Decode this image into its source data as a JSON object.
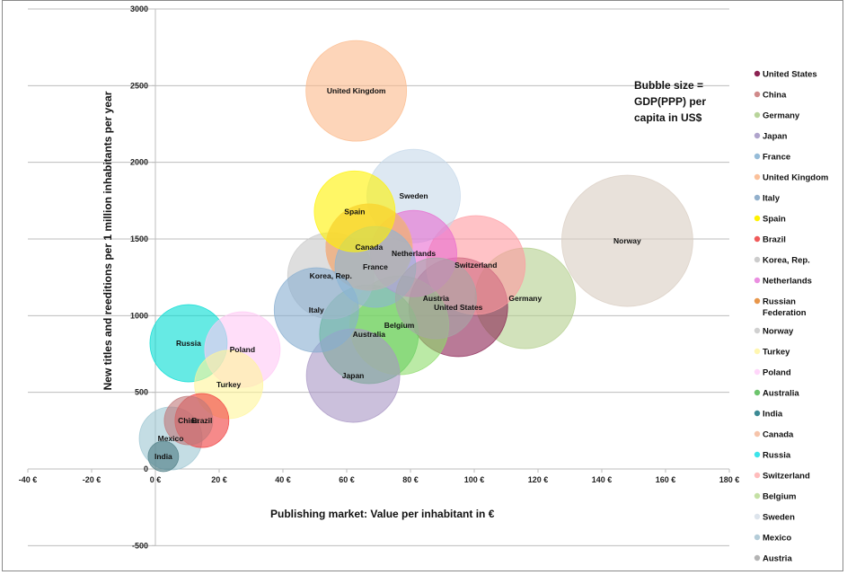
{
  "chart_data": {
    "type": "scatter",
    "subtype": "bubble",
    "title": "",
    "xlabel": "Publishing market: Value  per inhabitant in €",
    "ylabel": "New titles and reeditions per 1 million inhabitants per year",
    "annotation": [
      "Bubble size =",
      "GDP(PPP)  per",
      "capita in US$"
    ],
    "xlim": [
      -40,
      180
    ],
    "ylim": [
      -500,
      3000
    ],
    "x_ticks": [
      "-40 €",
      "-20 €",
      "0 €",
      "20 €",
      "40 €",
      "60 €",
      "80 €",
      "100 €",
      "120 €",
      "140 €",
      "160 €",
      "180 €"
    ],
    "x_tick_values": [
      -40,
      -20,
      0,
      20,
      40,
      60,
      80,
      100,
      120,
      140,
      160,
      180
    ],
    "y_ticks": [
      "-500",
      "0",
      "500",
      "1000",
      "1500",
      "2000",
      "2500",
      "3000"
    ],
    "y_tick_values": [
      -500,
      0,
      500,
      1000,
      1500,
      2000,
      2500,
      3000
    ],
    "grid": "horizontal",
    "legend_position": "right",
    "series": [
      {
        "name": "United States",
        "x": 95,
        "y": 1055,
        "size": 55,
        "color": "#8b2252",
        "label": "United States"
      },
      {
        "name": "China",
        "x": 10.4,
        "y": 316,
        "size": 27,
        "color": "#c0787a",
        "label": "China"
      },
      {
        "name": "Germany",
        "x": 116,
        "y": 1113,
        "size": 56,
        "color": "#b4cf8e",
        "label": "Germany"
      },
      {
        "name": "Japan",
        "x": 62,
        "y": 609,
        "size": 52,
        "color": "#a996c4",
        "label": "Japan"
      },
      {
        "name": "France",
        "x": 69,
        "y": 1318,
        "size": 45,
        "color": "#8bb5d6",
        "label": "France"
      },
      {
        "name": "United Kingdom",
        "x": 63,
        "y": 2466,
        "size": 56,
        "color": "#fbb98a",
        "label": "United Kingdom"
      },
      {
        "name": "Italy",
        "x": 50.5,
        "y": 1037,
        "size": 47,
        "color": "#87aed0",
        "label": "Italy"
      },
      {
        "name": "Spain",
        "x": 62.5,
        "y": 1680,
        "size": 45,
        "color": "#fff200",
        "label": "Spain"
      },
      {
        "name": "Brazil",
        "x": 14.6,
        "y": 316,
        "size": 30,
        "color": "#f03c3c",
        "label": "Brazil"
      },
      {
        "name": "Korea, Rep.",
        "x": 55,
        "y": 1260,
        "size": 48,
        "color": "#c8c8c8",
        "label": "Korea, Rep."
      },
      {
        "name": "Netherlands",
        "x": 81,
        "y": 1405,
        "size": 48,
        "color": "#e86ad0",
        "label": "Netherlands"
      },
      {
        "name": "Russian Federation",
        "x": 67,
        "y": 1447,
        "size": 48,
        "color": "#e8963c",
        "label": ""
      },
      {
        "name": "Norway",
        "x": 148,
        "y": 1488,
        "size": 73,
        "color": "#d9cdc2",
        "label": "Norway"
      },
      {
        "name": "Turkey",
        "x": 23,
        "y": 551,
        "size": 38,
        "color": "#fff59a",
        "label": "Turkey"
      },
      {
        "name": "Poland",
        "x": 27.3,
        "y": 779,
        "size": 42,
        "color": "#ffc8f5",
        "label": "Poland"
      },
      {
        "name": "Australia",
        "x": 67,
        "y": 879,
        "size": 55,
        "color": "#3cbe5a",
        "label": "Australia"
      },
      {
        "name": "India",
        "x": 2.5,
        "y": 82,
        "size": 17,
        "color": "#4a7a82",
        "label": "India"
      },
      {
        "name": "Canada",
        "x": 67,
        "y": 1447,
        "size": 48,
        "color": "#f2b89a",
        "label": "Canada"
      },
      {
        "name": "Russia",
        "x": 10.4,
        "y": 820,
        "size": 43,
        "color": "#00dcd2",
        "label": "Russia"
      },
      {
        "name": "Switzerland",
        "x": 100.5,
        "y": 1330,
        "size": 55,
        "color": "#ff9aa0",
        "label": "Switzerland"
      },
      {
        "name": "Belgium",
        "x": 76.5,
        "y": 937,
        "size": 55,
        "color": "#8edc6a",
        "label": "Belgium"
      },
      {
        "name": "Sweden",
        "x": 81,
        "y": 1780,
        "size": 52,
        "color": "#c6d8ea",
        "label": "Sweden"
      },
      {
        "name": "Mexico",
        "x": 4.8,
        "y": 199,
        "size": 35,
        "color": "#9cc6d2",
        "label": "Mexico"
      },
      {
        "name": "Austria",
        "x": 88,
        "y": 1113,
        "size": 45,
        "color": "#a6a6a6",
        "label": "Austria"
      }
    ]
  },
  "legend": {
    "items": [
      {
        "label": "United States",
        "color": "#8b2252"
      },
      {
        "label": "China",
        "color": "#d08a8a"
      },
      {
        "label": "Germany",
        "color": "#b8d49a"
      },
      {
        "label": "Japan",
        "color": "#b0a4cc"
      },
      {
        "label": "France",
        "color": "#96bcd8"
      },
      {
        "label": "United Kingdom",
        "color": "#fbc09a"
      },
      {
        "label": "Italy",
        "color": "#92b0cc"
      },
      {
        "label": "Spain",
        "color": "#fff200"
      },
      {
        "label": "Brazil",
        "color": "#f05a5a"
      },
      {
        "label": "Korea, Rep.",
        "color": "#cccccc"
      },
      {
        "label": "Netherlands",
        "color": "#ea8ee0"
      },
      {
        "label": "Russian",
        "label2": "Federation",
        "color": "#e8964a"
      },
      {
        "label": "Norway",
        "color": "#d0d0d0"
      },
      {
        "label": "Turkey",
        "color": "#fff6b0"
      },
      {
        "label": "Poland",
        "color": "#ffd6fa"
      },
      {
        "label": "Australia",
        "color": "#6cc46c"
      },
      {
        "label": "India",
        "color": "#3c8a94"
      },
      {
        "label": "Canada",
        "color": "#f6c4aa"
      },
      {
        "label": "Russia",
        "color": "#3ce4ea"
      },
      {
        "label": "Switzerland",
        "color": "#ffbcbc"
      },
      {
        "label": "Belgium",
        "color": "#c4e0a4"
      },
      {
        "label": "Sweden",
        "color": "#dde4ec"
      },
      {
        "label": "Mexico",
        "color": "#b4ccd8"
      },
      {
        "label": "Austria",
        "color": "#b4b4b4"
      }
    ]
  }
}
